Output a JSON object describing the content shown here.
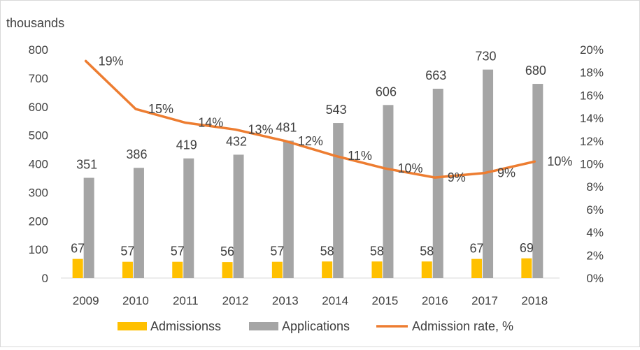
{
  "chart_data": {
    "type": "bar",
    "y_unit_label": "thousands",
    "categories": [
      "2009",
      "2010",
      "2011",
      "2012",
      "2013",
      "2014",
      "2015",
      "2016",
      "2017",
      "2018"
    ],
    "series": [
      {
        "name": "Admissionss",
        "type": "bar",
        "axis": "left",
        "color": "#ffc000",
        "values": [
          67,
          57,
          57,
          56,
          57,
          58,
          58,
          58,
          67,
          69
        ]
      },
      {
        "name": "Applications",
        "type": "bar",
        "axis": "left",
        "color": "#a5a5a5",
        "values": [
          351,
          386,
          419,
          432,
          481,
          543,
          606,
          663,
          730,
          680
        ]
      },
      {
        "name": "Admission rate, %",
        "type": "line",
        "axis": "right",
        "color": "#ed7d31",
        "values": [
          19,
          14.8,
          13.6,
          13,
          12,
          10.7,
          9.6,
          8.8,
          9.2,
          10.2
        ],
        "labels": [
          "19%",
          "15%",
          "14%",
          "13%",
          "12%",
          "11%",
          "10%",
          "9%",
          "9%",
          "10%"
        ]
      }
    ],
    "y_left": {
      "min": 0,
      "max": 800,
      "step": 100,
      "ticks": [
        "0",
        "100",
        "200",
        "300",
        "400",
        "500",
        "600",
        "700",
        "800"
      ]
    },
    "y_right": {
      "min": 0,
      "max": 20,
      "step": 2,
      "ticks": [
        "0%",
        "2%",
        "4%",
        "6%",
        "8%",
        "10%",
        "12%",
        "14%",
        "16%",
        "18%",
        "20%"
      ]
    },
    "grid": false,
    "legend_position": "bottom"
  }
}
